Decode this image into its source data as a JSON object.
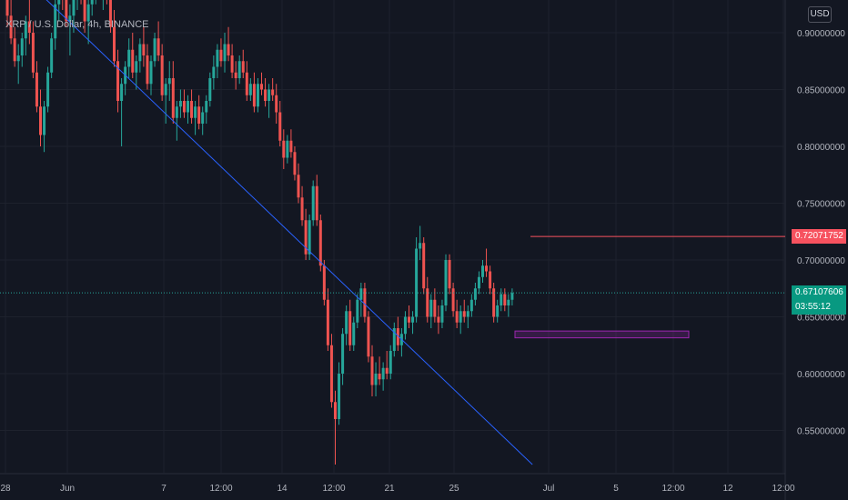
{
  "header": {
    "symbol_title": "XRP / U.S. Dollar, 4h, BINANCE",
    "currency": "USD"
  },
  "chart_data": {
    "type": "candlestick",
    "title": "XRP / U.S. Dollar, 4h, BINANCE",
    "ylim": [
      0.52,
      0.94
    ],
    "y_ticks": [
      "0.90000000",
      "0.85000000",
      "0.80000000",
      "0.75000000",
      "0.70000000",
      "0.65000000",
      "0.60000000",
      "0.55000000"
    ],
    "y_tick_values": [
      0.9,
      0.85,
      0.8,
      0.75,
      0.7,
      0.65,
      0.6,
      0.55
    ],
    "x_ticks": [
      "28",
      "Jun",
      "7",
      "12:00",
      "14",
      "12:00",
      "21",
      "25",
      "Jul",
      "5",
      "12:00",
      "12",
      "12:00"
    ],
    "grid": true,
    "colors": {
      "up": "#26a69a",
      "down": "#ef5350",
      "background": "#131722",
      "trendline": "#2962ff",
      "level": "#f7525f",
      "zone": "#9c27b0"
    },
    "candles_ohlc": [
      [
        0.945,
        0.96,
        0.93,
        0.935
      ],
      [
        0.935,
        0.95,
        0.905,
        0.915
      ],
      [
        0.915,
        0.93,
        0.89,
        0.895
      ],
      [
        0.895,
        0.905,
        0.87,
        0.875
      ],
      [
        0.875,
        0.89,
        0.855,
        0.88
      ],
      [
        0.88,
        0.9,
        0.87,
        0.895
      ],
      [
        0.895,
        0.915,
        0.88,
        0.91
      ],
      [
        0.91,
        0.93,
        0.89,
        0.9
      ],
      [
        0.9,
        0.91,
        0.86,
        0.865
      ],
      [
        0.865,
        0.875,
        0.83,
        0.835
      ],
      [
        0.835,
        0.85,
        0.8,
        0.81
      ],
      [
        0.81,
        0.84,
        0.795,
        0.835
      ],
      [
        0.835,
        0.87,
        0.83,
        0.865
      ],
      [
        0.865,
        0.9,
        0.86,
        0.895
      ],
      [
        0.895,
        0.93,
        0.885,
        0.925
      ],
      [
        0.925,
        0.96,
        0.91,
        0.94
      ],
      [
        0.94,
        0.955,
        0.92,
        0.93
      ],
      [
        0.93,
        0.945,
        0.905,
        0.91
      ],
      [
        0.91,
        0.925,
        0.88,
        0.915
      ],
      [
        0.915,
        0.94,
        0.9,
        0.935
      ],
      [
        0.935,
        0.955,
        0.92,
        0.945
      ],
      [
        0.945,
        0.96,
        0.925,
        0.93
      ],
      [
        0.93,
        0.945,
        0.9,
        0.91
      ],
      [
        0.91,
        0.93,
        0.89,
        0.925
      ],
      [
        0.925,
        0.95,
        0.915,
        0.94
      ],
      [
        0.94,
        0.955,
        0.925,
        0.945
      ],
      [
        0.945,
        0.96,
        0.93,
        0.935
      ],
      [
        0.935,
        0.95,
        0.92,
        0.94
      ],
      [
        0.94,
        0.955,
        0.925,
        0.93
      ],
      [
        0.93,
        0.945,
        0.9,
        0.905
      ],
      [
        0.905,
        0.92,
        0.87,
        0.875
      ],
      [
        0.875,
        0.885,
        0.83,
        0.84
      ],
      [
        0.84,
        0.86,
        0.8,
        0.855
      ],
      [
        0.855,
        0.875,
        0.845,
        0.87
      ],
      [
        0.87,
        0.895,
        0.86,
        0.885
      ],
      [
        0.885,
        0.9,
        0.86,
        0.865
      ],
      [
        0.865,
        0.88,
        0.85,
        0.875
      ],
      [
        0.875,
        0.895,
        0.865,
        0.89
      ],
      [
        0.89,
        0.905,
        0.87,
        0.88
      ],
      [
        0.88,
        0.89,
        0.85,
        0.855
      ],
      [
        0.855,
        0.88,
        0.845,
        0.875
      ],
      [
        0.875,
        0.9,
        0.87,
        0.895
      ],
      [
        0.895,
        0.91,
        0.875,
        0.88
      ],
      [
        0.88,
        0.89,
        0.84,
        0.845
      ],
      [
        0.845,
        0.86,
        0.82,
        0.855
      ],
      [
        0.855,
        0.875,
        0.84,
        0.86
      ],
      [
        0.86,
        0.875,
        0.82,
        0.825
      ],
      [
        0.825,
        0.84,
        0.805,
        0.835
      ],
      [
        0.835,
        0.85,
        0.825,
        0.84
      ],
      [
        0.84,
        0.85,
        0.825,
        0.83
      ],
      [
        0.83,
        0.845,
        0.82,
        0.84
      ],
      [
        0.84,
        0.85,
        0.82,
        0.825
      ],
      [
        0.825,
        0.84,
        0.81,
        0.835
      ],
      [
        0.835,
        0.845,
        0.815,
        0.82
      ],
      [
        0.82,
        0.835,
        0.81,
        0.83
      ],
      [
        0.83,
        0.845,
        0.82,
        0.84
      ],
      [
        0.84,
        0.865,
        0.835,
        0.86
      ],
      [
        0.86,
        0.88,
        0.85,
        0.87
      ],
      [
        0.87,
        0.89,
        0.86,
        0.885
      ],
      [
        0.885,
        0.895,
        0.87,
        0.875
      ],
      [
        0.875,
        0.9,
        0.865,
        0.89
      ],
      [
        0.89,
        0.905,
        0.875,
        0.88
      ],
      [
        0.88,
        0.89,
        0.86,
        0.865
      ],
      [
        0.865,
        0.875,
        0.85,
        0.86
      ],
      [
        0.86,
        0.88,
        0.855,
        0.875
      ],
      [
        0.875,
        0.885,
        0.86,
        0.865
      ],
      [
        0.865,
        0.875,
        0.84,
        0.845
      ],
      [
        0.845,
        0.86,
        0.84,
        0.855
      ],
      [
        0.855,
        0.865,
        0.83,
        0.835
      ],
      [
        0.835,
        0.86,
        0.83,
        0.855
      ],
      [
        0.855,
        0.865,
        0.845,
        0.85
      ],
      [
        0.85,
        0.86,
        0.835,
        0.84
      ],
      [
        0.84,
        0.855,
        0.825,
        0.85
      ],
      [
        0.85,
        0.86,
        0.84,
        0.845
      ],
      [
        0.845,
        0.855,
        0.82,
        0.83
      ],
      [
        0.83,
        0.84,
        0.8,
        0.805
      ],
      [
        0.805,
        0.815,
        0.78,
        0.79
      ],
      [
        0.79,
        0.81,
        0.785,
        0.805
      ],
      [
        0.805,
        0.815,
        0.79,
        0.795
      ],
      [
        0.795,
        0.8,
        0.77,
        0.775
      ],
      [
        0.775,
        0.785,
        0.75,
        0.755
      ],
      [
        0.755,
        0.765,
        0.73,
        0.735
      ],
      [
        0.735,
        0.745,
        0.7,
        0.705
      ],
      [
        0.705,
        0.74,
        0.7,
        0.735
      ],
      [
        0.735,
        0.77,
        0.73,
        0.765
      ],
      [
        0.765,
        0.775,
        0.73,
        0.735
      ],
      [
        0.735,
        0.74,
        0.69,
        0.695
      ],
      [
        0.695,
        0.7,
        0.66,
        0.665
      ],
      [
        0.665,
        0.675,
        0.62,
        0.625
      ],
      [
        0.625,
        0.635,
        0.57,
        0.575
      ],
      [
        0.575,
        0.585,
        0.52,
        0.56
      ],
      [
        0.56,
        0.61,
        0.555,
        0.6
      ],
      [
        0.6,
        0.64,
        0.59,
        0.635
      ],
      [
        0.635,
        0.66,
        0.625,
        0.655
      ],
      [
        0.655,
        0.665,
        0.62,
        0.625
      ],
      [
        0.625,
        0.65,
        0.62,
        0.645
      ],
      [
        0.645,
        0.67,
        0.64,
        0.665
      ],
      [
        0.665,
        0.68,
        0.65,
        0.675
      ],
      [
        0.675,
        0.68,
        0.645,
        0.65
      ],
      [
        0.65,
        0.655,
        0.61,
        0.615
      ],
      [
        0.615,
        0.625,
        0.58,
        0.59
      ],
      [
        0.59,
        0.61,
        0.58,
        0.6
      ],
      [
        0.6,
        0.615,
        0.59,
        0.595
      ],
      [
        0.595,
        0.61,
        0.585,
        0.605
      ],
      [
        0.605,
        0.62,
        0.595,
        0.6
      ],
      [
        0.6,
        0.625,
        0.595,
        0.62
      ],
      [
        0.62,
        0.645,
        0.615,
        0.64
      ],
      [
        0.64,
        0.65,
        0.62,
        0.625
      ],
      [
        0.625,
        0.64,
        0.615,
        0.635
      ],
      [
        0.635,
        0.655,
        0.63,
        0.65
      ],
      [
        0.65,
        0.66,
        0.64,
        0.645
      ],
      [
        0.645,
        0.655,
        0.635,
        0.65
      ],
      [
        0.65,
        0.72,
        0.645,
        0.71
      ],
      [
        0.71,
        0.73,
        0.7,
        0.715
      ],
      [
        0.715,
        0.72,
        0.67,
        0.675
      ],
      [
        0.675,
        0.685,
        0.645,
        0.65
      ],
      [
        0.65,
        0.67,
        0.64,
        0.665
      ],
      [
        0.665,
        0.675,
        0.645,
        0.65
      ],
      [
        0.65,
        0.66,
        0.635,
        0.645
      ],
      [
        0.645,
        0.665,
        0.64,
        0.66
      ],
      [
        0.66,
        0.705,
        0.655,
        0.7
      ],
      [
        0.7,
        0.705,
        0.67,
        0.675
      ],
      [
        0.675,
        0.68,
        0.65,
        0.655
      ],
      [
        0.655,
        0.665,
        0.64,
        0.645
      ],
      [
        0.645,
        0.66,
        0.635,
        0.655
      ],
      [
        0.655,
        0.665,
        0.645,
        0.65
      ],
      [
        0.65,
        0.66,
        0.64,
        0.655
      ],
      [
        0.655,
        0.67,
        0.65,
        0.665
      ],
      [
        0.665,
        0.68,
        0.66,
        0.675
      ],
      [
        0.675,
        0.69,
        0.67,
        0.685
      ],
      [
        0.685,
        0.7,
        0.68,
        0.695
      ],
      [
        0.695,
        0.71,
        0.685,
        0.69
      ],
      [
        0.69,
        0.695,
        0.67,
        0.675
      ],
      [
        0.675,
        0.68,
        0.645,
        0.65
      ],
      [
        0.65,
        0.665,
        0.645,
        0.66
      ],
      [
        0.66,
        0.675,
        0.655,
        0.67
      ],
      [
        0.67,
        0.675,
        0.655,
        0.66
      ],
      [
        0.66,
        0.67,
        0.65,
        0.665
      ],
      [
        0.665,
        0.675,
        0.66,
        0.671
      ]
    ],
    "trendline": {
      "start": [
        0,
        0.965
      ],
      "end": [
        143.5,
        0.52
      ]
    },
    "resistance_level": 0.72071752,
    "support_zone": {
      "from_candle": 112,
      "to_candle": 145,
      "low": 0.6315,
      "high": 0.6375
    },
    "last_price": 0.67107606,
    "price_labels": {
      "level": "0.72071752",
      "last": "0.67107606",
      "countdown": "03:55:12"
    }
  }
}
